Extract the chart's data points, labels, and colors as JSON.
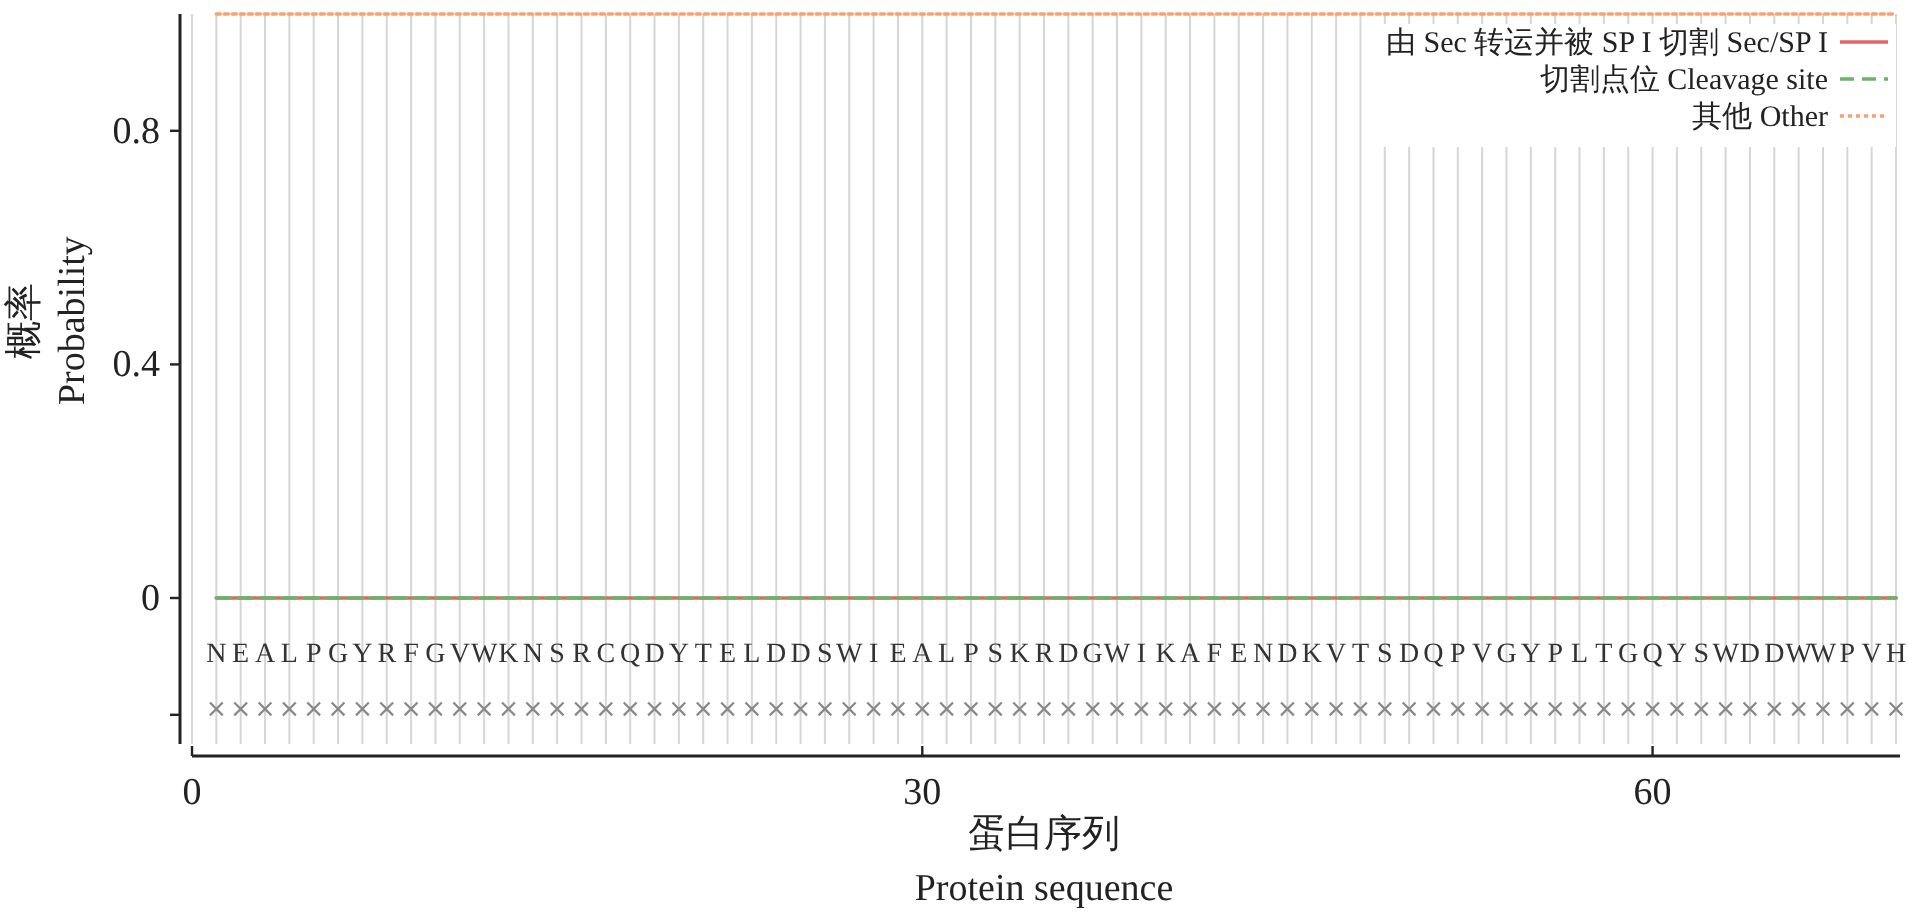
{
  "chart_data": {
    "type": "line",
    "xlabel": "蛋白序列\nProtein sequence",
    "ylabel": "概率\nProbability",
    "x": [
      1,
      2,
      3,
      4,
      5,
      6,
      7,
      8,
      9,
      10,
      11,
      12,
      13,
      14,
      15,
      16,
      17,
      18,
      19,
      20,
      21,
      22,
      23,
      24,
      25,
      26,
      27,
      28,
      29,
      30,
      31,
      32,
      33,
      34,
      35,
      36,
      37,
      38,
      39,
      40,
      41,
      42,
      43,
      44,
      45,
      46,
      47,
      48,
      49,
      50,
      51,
      52,
      53,
      54,
      55,
      56,
      57,
      58,
      59,
      60,
      61,
      62,
      63,
      64,
      65,
      66,
      67,
      68,
      69,
      70
    ],
    "series": [
      {
        "name": "由 Sec 转运并被 SP I 切割 Sec/SP I",
        "color": "#e06666",
        "line_style": "solid",
        "values": [
          0,
          0,
          0,
          0,
          0,
          0,
          0,
          0,
          0,
          0,
          0,
          0,
          0,
          0,
          0,
          0,
          0,
          0,
          0,
          0,
          0,
          0,
          0,
          0,
          0,
          0,
          0,
          0,
          0,
          0,
          0,
          0,
          0,
          0,
          0,
          0,
          0,
          0,
          0,
          0,
          0,
          0,
          0,
          0,
          0,
          0,
          0,
          0,
          0,
          0,
          0,
          0,
          0,
          0,
          0,
          0,
          0,
          0,
          0,
          0,
          0,
          0,
          0,
          0,
          0,
          0,
          0,
          0,
          0,
          0
        ]
      },
      {
        "name": "切割点位 Cleavage site",
        "color": "#6ab46a",
        "line_style": "dashed",
        "values": [
          0,
          0,
          0,
          0,
          0,
          0,
          0,
          0,
          0,
          0,
          0,
          0,
          0,
          0,
          0,
          0,
          0,
          0,
          0,
          0,
          0,
          0,
          0,
          0,
          0,
          0,
          0,
          0,
          0,
          0,
          0,
          0,
          0,
          0,
          0,
          0,
          0,
          0,
          0,
          0,
          0,
          0,
          0,
          0,
          0,
          0,
          0,
          0,
          0,
          0,
          0,
          0,
          0,
          0,
          0,
          0,
          0,
          0,
          0,
          0,
          0,
          0,
          0,
          0,
          0,
          0,
          0,
          0,
          0,
          0
        ]
      },
      {
        "name": "其他 Other",
        "color": "#f4a471",
        "line_style": "dotted",
        "values": [
          1,
          1,
          1,
          1,
          1,
          1,
          1,
          1,
          1,
          1,
          1,
          1,
          1,
          1,
          1,
          1,
          1,
          1,
          1,
          1,
          1,
          1,
          1,
          1,
          1,
          1,
          1,
          1,
          1,
          1,
          1,
          1,
          1,
          1,
          1,
          1,
          1,
          1,
          1,
          1,
          1,
          1,
          1,
          1,
          1,
          1,
          1,
          1,
          1,
          1,
          1,
          1,
          1,
          1,
          1,
          1,
          1,
          1,
          1,
          1,
          1,
          1,
          1,
          1,
          1,
          1,
          1,
          1,
          1,
          1
        ]
      },
      {
        "type": "scatter",
        "marker": "cross",
        "color": "#888888",
        "values": [
          -0.19,
          -0.19,
          -0.19,
          -0.19,
          -0.19,
          -0.19,
          -0.19,
          -0.19,
          -0.19,
          -0.19,
          -0.19,
          -0.19,
          -0.19,
          -0.19,
          -0.19,
          -0.19,
          -0.19,
          -0.19,
          -0.19,
          -0.19,
          -0.19,
          -0.19,
          -0.19,
          -0.19,
          -0.19,
          -0.19,
          -0.19,
          -0.19,
          -0.19,
          -0.19,
          -0.19,
          -0.19,
          -0.19,
          -0.19,
          -0.19,
          -0.19,
          -0.19,
          -0.19,
          -0.19,
          -0.19,
          -0.19,
          -0.19,
          -0.19,
          -0.19,
          -0.19,
          -0.19,
          -0.19,
          -0.19,
          -0.19,
          -0.19,
          -0.19,
          -0.19,
          -0.19,
          -0.19,
          -0.19,
          -0.19,
          -0.19,
          -0.19,
          -0.19,
          -0.19,
          -0.19,
          -0.19,
          -0.19,
          -0.19,
          -0.19,
          -0.19,
          -0.19,
          -0.19,
          -0.19,
          -0.19
        ]
      }
    ],
    "xlim": [
      0,
      70
    ],
    "ylim": [
      -0.25,
      1
    ],
    "xticks": [
      0,
      {
        "value": 1,
        "label": null
      },
      {
        "value": 2,
        "label": null
      },
      {
        "value": 3,
        "label": null
      },
      {
        "value": 4,
        "label": null
      },
      {
        "value": 5,
        "label": null
      },
      {
        "value": 6,
        "label": null
      },
      {
        "value": 7,
        "label": null
      },
      {
        "value": 8,
        "label": null
      },
      {
        "value": 9,
        "label": null
      },
      {
        "value": 10,
        "label": null
      },
      {
        "value": 11,
        "label": null
      },
      {
        "value": 12,
        "label": null
      },
      {
        "value": 13,
        "label": null
      },
      {
        "value": 14,
        "label": null
      },
      {
        "value": 15,
        "label": null
      },
      {
        "value": 16,
        "label": null
      },
      {
        "value": 17,
        "label": null
      },
      {
        "value": 18,
        "label": null
      },
      {
        "value": 19,
        "label": null
      },
      {
        "value": 20,
        "label": null
      },
      {
        "value": 21,
        "label": null
      },
      {
        "value": 22,
        "label": null
      },
      {
        "value": 23,
        "label": null
      },
      {
        "value": 24,
        "label": null
      },
      {
        "value": 25,
        "label": null
      },
      {
        "value": 26,
        "label": null
      },
      {
        "value": 27,
        "label": null
      },
      {
        "value": 28,
        "label": null
      },
      {
        "value": 29,
        "label": null
      },
      30,
      {
        "value": 31,
        "label": null
      },
      {
        "value": 32,
        "label": null
      },
      {
        "value": 33,
        "label": null
      },
      {
        "value": 34,
        "label": null
      },
      {
        "value": 35,
        "label": null
      },
      {
        "value": 36,
        "label": null
      },
      {
        "value": 37,
        "label": null
      },
      {
        "value": 38,
        "label": null
      },
      {
        "value": 39,
        "label": null
      },
      {
        "value": 40,
        "label": null
      },
      {
        "value": 41,
        "label": null
      },
      {
        "value": 42,
        "label": null
      },
      {
        "value": 43,
        "label": null
      },
      {
        "value": 44,
        "label": null
      },
      {
        "value": 45,
        "label": null
      },
      {
        "value": 46,
        "label": null
      },
      {
        "value": 47,
        "label": null
      },
      {
        "value": 48,
        "label": null
      },
      {
        "value": 49,
        "label": null
      },
      {
        "value": 50,
        "label": null
      },
      {
        "value": 51,
        "label": null
      },
      {
        "value": 52,
        "label": null
      },
      {
        "value": 53,
        "label": null
      },
      {
        "value": 54,
        "label": null
      },
      {
        "value": 55,
        "label": null
      },
      {
        "value": 56,
        "label": null
      },
      {
        "value": 57,
        "label": null
      },
      {
        "value": 58,
        "label": null
      },
      {
        "value": 59,
        "label": null
      },
      60,
      {
        "value": 61,
        "label": null
      },
      {
        "value": 62,
        "label": null
      },
      {
        "value": 63,
        "label": null
      },
      {
        "value": 64,
        "label": null
      },
      {
        "value": 65,
        "label": null
      },
      {
        "value": 66,
        "label": null
      },
      {
        "value": 67,
        "label": null
      },
      {
        "value": 68,
        "label": null
      },
      {
        "value": 69,
        "label": null
      },
      {
        "value": 70,
        "label": null
      }
    ],
    "yticks": [
      {
        "value": -0.2,
        "label": null
      },
      0,
      0.4,
      0.8
    ],
    "grid": "x",
    "legend": "top right",
    "annotations": [
      "N",
      "E",
      "A",
      "L",
      "P",
      "G",
      "Y",
      "R",
      "F",
      "G",
      "V",
      "W",
      "K",
      "N",
      "S",
      "R",
      "C",
      "Q",
      "D",
      "Y",
      "T",
      "E",
      "L",
      "D",
      "D",
      "S",
      "W",
      "I",
      "E",
      "A",
      "L",
      "P",
      "S",
      "K",
      "R",
      "D",
      "G",
      "W",
      "I",
      "K",
      "A",
      "F",
      "E",
      "N",
      "D",
      "K",
      "V",
      "T",
      "S",
      "D",
      "Q",
      "P",
      "V",
      "G",
      "Y",
      "P",
      "L",
      "T",
      "G",
      "Q",
      "Y",
      "S",
      "W",
      "D",
      "D",
      "W",
      "W",
      "P",
      "V",
      "H"
    ]
  }
}
